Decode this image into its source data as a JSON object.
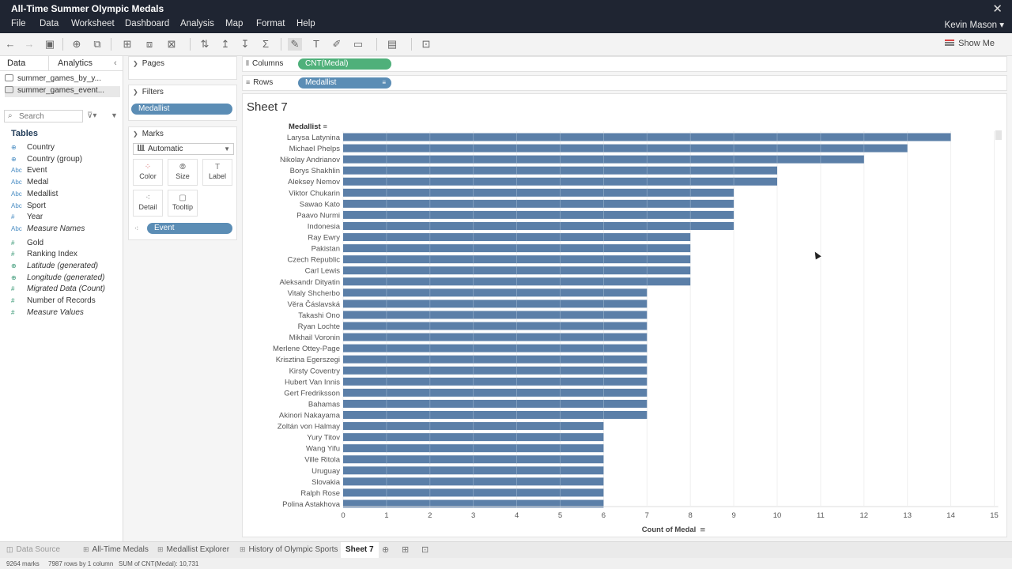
{
  "window": {
    "title": "All-Time Summer Olympic Medals"
  },
  "menu": [
    "File",
    "Data",
    "Worksheet",
    "Dashboard",
    "Analysis",
    "Map",
    "Format",
    "Help"
  ],
  "user": "Kevin Mason ▾",
  "toolbar": {
    "show_me": "Show Me"
  },
  "data_pane": {
    "tabs": {
      "data": "Data",
      "analytics": "Analytics"
    },
    "sources": [
      "summer_games_by_y...",
      "summer_games_event..."
    ],
    "search_placeholder": "Search",
    "tables_label": "Tables",
    "fields": [
      {
        "icon": "Abc",
        "name": "Country",
        "kind": "geo"
      },
      {
        "icon": "Abc",
        "name": "Country (group)",
        "kind": "group"
      },
      {
        "icon": "Abc",
        "name": "Event",
        "kind": "dim"
      },
      {
        "icon": "Abc",
        "name": "Medal",
        "kind": "dim"
      },
      {
        "icon": "Abc",
        "name": "Medallist",
        "kind": "dim"
      },
      {
        "icon": "Abc",
        "name": "Sport",
        "kind": "dim"
      },
      {
        "icon": "#",
        "name": "Year",
        "kind": "dim"
      },
      {
        "icon": "Abc",
        "name": "Measure Names",
        "kind": "dim-italic"
      },
      {
        "icon": "#",
        "name": "Gold",
        "kind": "meas"
      },
      {
        "icon": "#",
        "name": "Ranking Index",
        "kind": "meas"
      },
      {
        "icon": "geo",
        "name": "Latitude (generated)",
        "kind": "meas-italic"
      },
      {
        "icon": "geo",
        "name": "Longitude (generated)",
        "kind": "meas-italic"
      },
      {
        "icon": "#",
        "name": "Migrated Data (Count)",
        "kind": "meas-italic"
      },
      {
        "icon": "#",
        "name": "Number of Records",
        "kind": "meas"
      },
      {
        "icon": "#",
        "name": "Measure Values",
        "kind": "meas-italic"
      }
    ]
  },
  "cards": {
    "pages": "Pages",
    "filters": "Filters",
    "filter_pill": "Medallist",
    "marks": "Marks",
    "mark_type": "Automatic",
    "mark_buttons": [
      "Color",
      "Size",
      "Label",
      "Detail",
      "Tooltip"
    ],
    "detail_pill": "Event"
  },
  "shelves": {
    "columns_label": "Columns",
    "columns_pill": "CNT(Medal)",
    "rows_label": "Rows",
    "rows_pill": "Medallist"
  },
  "sheet": {
    "title": "Sheet 7",
    "row_header": "Medallist",
    "x_axis_title": "Count of Medal"
  },
  "chart_data": {
    "type": "bar",
    "orientation": "horizontal",
    "categories": [
      "Larysa Latynina",
      "Michael Phelps",
      "Nikolay Andrianov",
      "Borys Shakhlin",
      "Aleksey Nemov",
      "Viktor Chukarin",
      "Sawao Kato",
      "Paavo Nurmi",
      "Indonesia",
      "Ray Ewry",
      "Pakistan",
      "Czech Republic",
      "Carl Lewis",
      "Aleksandr Dityatin",
      "Vitaly Shcherbo",
      "Věra Čáslavská",
      "Takashi Ono",
      "Ryan Lochte",
      "Mikhail Voronin",
      "Merlene Ottey-Page",
      "Krisztina Egerszegi",
      "Kirsty Coventry",
      "Hubert Van Innis",
      "Gert Fredriksson",
      "Bahamas",
      "Akinori Nakayama",
      "Zoltán von Halmay",
      "Yury Titov",
      "Wang Yifu",
      "Ville Ritola",
      "Uruguay",
      "Slovakia",
      "Ralph Rose",
      "Polina Astakhova"
    ],
    "values": [
      14,
      13,
      12,
      10,
      10,
      9,
      9,
      9,
      9,
      8,
      8,
      8,
      8,
      8,
      7,
      7,
      7,
      7,
      7,
      7,
      7,
      7,
      7,
      7,
      7,
      7,
      6,
      6,
      6,
      6,
      6,
      6,
      6,
      6
    ],
    "xlabel": "Count of Medal",
    "ylabel": "Medallist",
    "xlim": [
      0,
      15
    ],
    "x_ticks": [
      0,
      1,
      2,
      3,
      4,
      5,
      6,
      7,
      8,
      9,
      10,
      11,
      12,
      13,
      14,
      15
    ],
    "bar_color": "#5b7fa8",
    "grid": true
  },
  "tabs": {
    "data_source": "Data Source",
    "sheets": [
      "All-Time Medals",
      "Medallist Explorer",
      "History of Olympic Sports",
      "Sheet 7"
    ]
  },
  "status": {
    "marks": "9264 marks",
    "rows": "7987 rows by 1 column",
    "sum": "SUM of CNT(Medal): 10,731"
  }
}
